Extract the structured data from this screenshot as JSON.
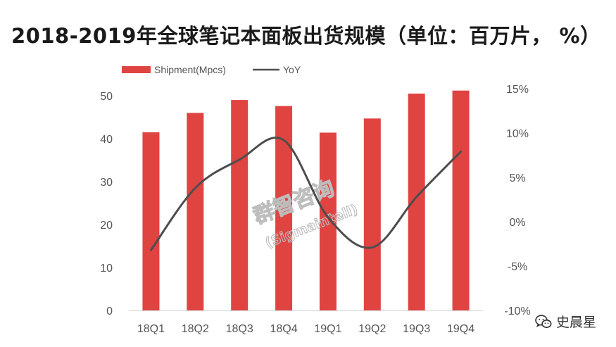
{
  "title": "2018-2019年全球笔记本面板出货规模（单位：百万片， %）",
  "chart_data": {
    "type": "bar",
    "categories": [
      "18Q1",
      "18Q2",
      "18Q3",
      "18Q4",
      "19Q1",
      "19Q2",
      "19Q3",
      "19Q4"
    ],
    "series": [
      {
        "name": "Shipment(Mpcs)",
        "type": "bar",
        "axis": "left",
        "color": "#e04441",
        "values": [
          41.5,
          46.0,
          49.0,
          47.6,
          41.4,
          44.7,
          50.5,
          51.2
        ]
      },
      {
        "name": "YoY",
        "type": "line",
        "axis": "right",
        "color": "#4d4d4d",
        "values": [
          -3.2,
          3.8,
          7.0,
          9.2,
          0.5,
          -2.9,
          2.8,
          7.9
        ]
      }
    ],
    "y_left": {
      "min": 0,
      "max": 50,
      "ticks": [
        "0",
        "10",
        "20",
        "30",
        "40",
        "50"
      ]
    },
    "y_right": {
      "min": -10,
      "max": 15,
      "ticks": [
        "-10%",
        "-5%",
        "0%",
        "5%",
        "10%",
        "15%"
      ]
    },
    "ylim_display_left": [
      0,
      53
    ],
    "legend": {
      "position": "top-left"
    },
    "grid": false
  },
  "watermark": {
    "main": "群智咨询",
    "sub": "(Sigmaintell)"
  },
  "brand": {
    "name": "史晨星",
    "icon": "wechat-icon"
  }
}
